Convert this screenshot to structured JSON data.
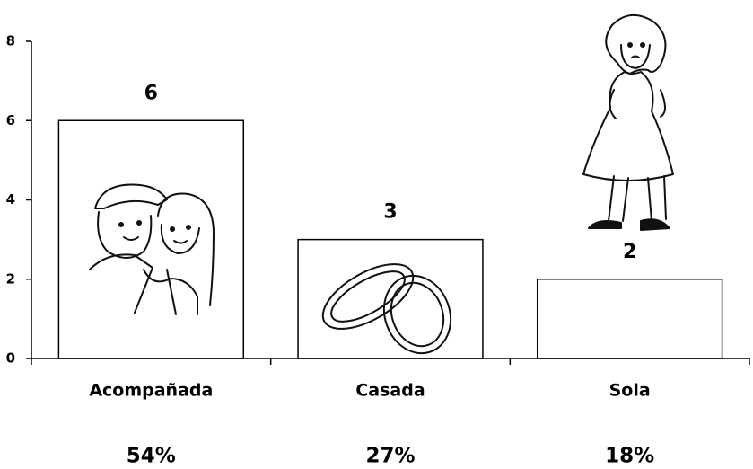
{
  "chart_data": {
    "type": "bar",
    "categories": [
      "Acompañada",
      "Casada",
      "Sola"
    ],
    "values": [
      6,
      3,
      2
    ],
    "category_percent_labels": [
      "54%",
      "27%",
      "18%"
    ],
    "color": "#ffffff",
    "ylim": [
      0,
      8
    ],
    "yticks": [
      0,
      2,
      4,
      6,
      8
    ],
    "grid": false
  }
}
